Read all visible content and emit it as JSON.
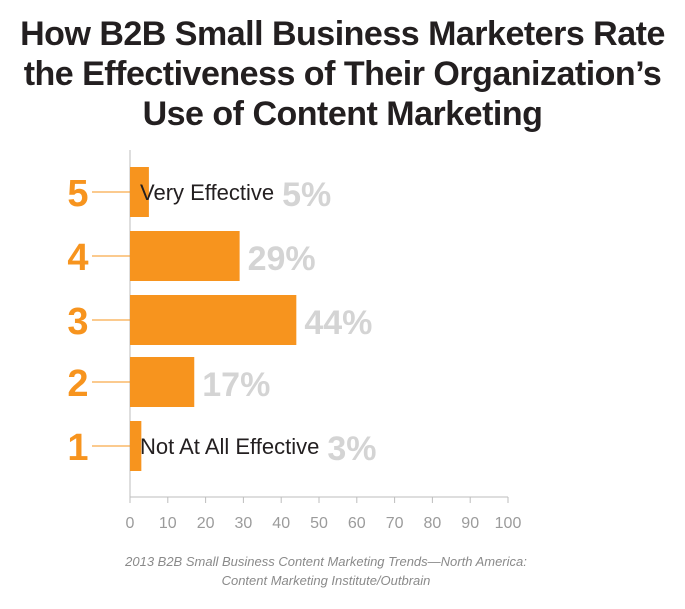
{
  "title_lines": [
    "How B2B Small Business Marketers Rate",
    "the Effectiveness of Their Organization’s",
    "Use of Content Marketing"
  ],
  "source_lines": [
    "2013 B2B Small Business Content Marketing Trends—North America:",
    "Content Marketing Institute/Outbrain"
  ],
  "colors": {
    "bar": "#f7941e",
    "rating": "#f7941e",
    "percent": "#d4d4d4",
    "axis": "#bdbdbd",
    "text": "#231f20"
  },
  "chart_data": {
    "type": "bar",
    "orientation": "horizontal",
    "categories": [
      "5",
      "4",
      "3",
      "2",
      "1"
    ],
    "values": [
      5,
      29,
      44,
      17,
      3
    ],
    "value_labels": [
      "5%",
      "29%",
      "44%",
      "17%",
      "3%"
    ],
    "bar_annotations": [
      "Very Effective",
      "",
      "",
      "",
      "Not At All Effective"
    ],
    "xlim": [
      0,
      100
    ],
    "xticks": [
      "0",
      "10",
      "20",
      "30",
      "40",
      "50",
      "60",
      "70",
      "80",
      "90",
      "100"
    ],
    "grid": false
  }
}
